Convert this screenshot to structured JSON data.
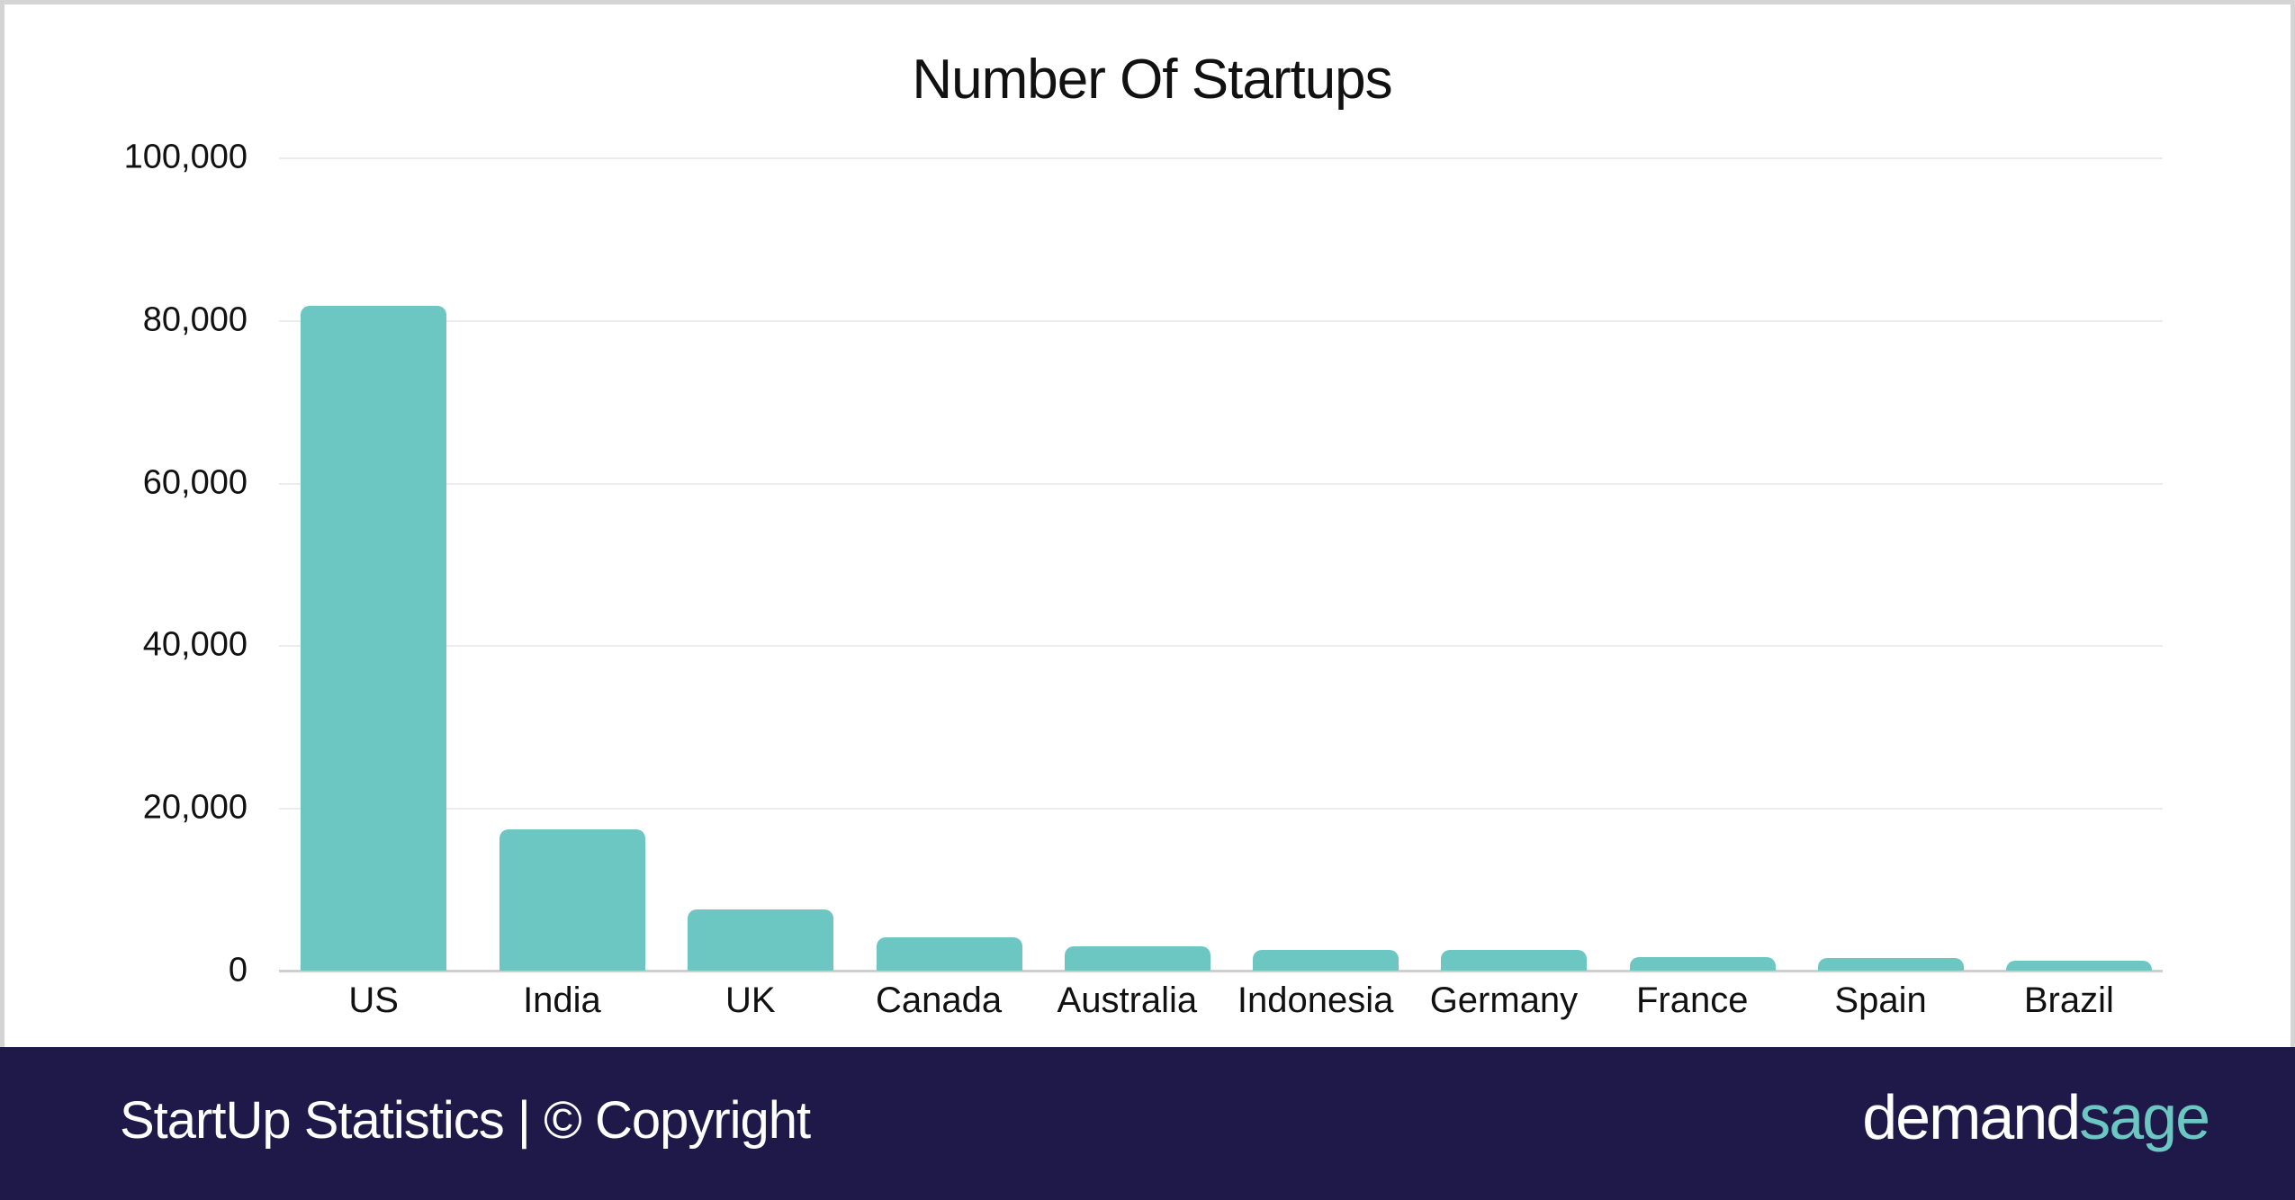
{
  "chart_data": {
    "type": "bar",
    "title": "Number Of Startups",
    "xlabel": "",
    "ylabel": "",
    "categories": [
      "US",
      "India",
      "UK",
      "Canada",
      "Australia",
      "Indonesia",
      "Germany",
      "France",
      "Spain",
      "Brazil"
    ],
    "values": [
      81800,
      17400,
      7500,
      4100,
      3000,
      2600,
      2500,
      1700,
      1500,
      1200
    ],
    "ylim": [
      0,
      100000
    ],
    "yticks": [
      "0",
      "20,000",
      "40,000",
      "60,000",
      "80,000",
      "100,000"
    ],
    "grid": true,
    "legend": null,
    "bar_color": "#6cc7c2"
  },
  "footer": {
    "caption": "StartUp Statistics | © Copyright",
    "brand_main": "demand",
    "brand_accent": "sage",
    "background": "#1f194a"
  }
}
